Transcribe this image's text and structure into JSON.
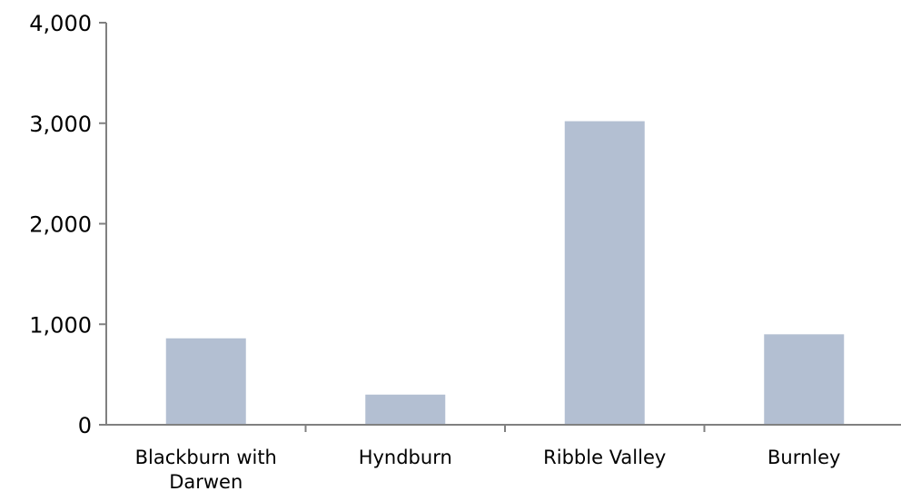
{
  "chart_data": {
    "type": "bar",
    "title": "",
    "xlabel": "",
    "ylabel": "",
    "categories": [
      "Blackburn with Darwen",
      "Hyndburn",
      "Ribble Valley",
      "Burnley"
    ],
    "category_lines": [
      [
        "Blackburn with",
        "Darwen"
      ],
      [
        "Hyndburn"
      ],
      [
        "Ribble Valley"
      ],
      [
        "Burnley"
      ]
    ],
    "values": [
      860,
      300,
      3020,
      900
    ],
    "ylim": [
      0,
      4000
    ],
    "yticks": [
      0,
      1000,
      2000,
      3000,
      4000
    ],
    "ytick_labels": [
      "0",
      "1,000",
      "2,000",
      "3,000",
      "4,000"
    ],
    "grid": false,
    "legend": "none",
    "colors": {
      "bar": "#b3bfd2",
      "axis": "#808080"
    }
  }
}
